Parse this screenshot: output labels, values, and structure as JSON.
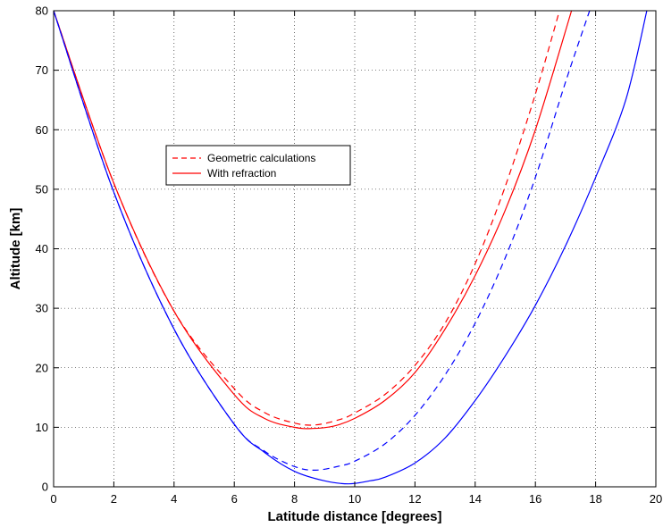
{
  "chart_data": {
    "type": "line",
    "xlabel": "Latitude distance [degrees]",
    "ylabel": "Altitude [km]",
    "xlim": [
      0,
      20
    ],
    "ylim": [
      0,
      80
    ],
    "xticks": [
      0,
      2,
      4,
      6,
      8,
      10,
      12,
      14,
      16,
      18,
      20
    ],
    "yticks": [
      0,
      10,
      20,
      30,
      40,
      50,
      60,
      70,
      80
    ],
    "grid": true,
    "legend": {
      "placement": "upper-left-center",
      "entries": [
        {
          "label": "Geometric calculations",
          "style": "dashed",
          "color": "#ff0000"
        },
        {
          "label": "With refraction",
          "style": "solid",
          "color": "#ff0000"
        }
      ]
    },
    "series": [
      {
        "color": "#ff0000",
        "style": "dashed",
        "x": [
          0,
          2,
          4,
          6,
          7,
          8,
          8.7,
          9.5,
          10,
          11,
          12,
          13,
          14,
          15,
          16,
          16.8
        ],
        "y": [
          80,
          51,
          29.5,
          16.5,
          12.5,
          10.7,
          10.4,
          11.3,
          12.4,
          15.5,
          20.4,
          27.5,
          37.5,
          50.5,
          66,
          80
        ]
      },
      {
        "color": "#ff0000",
        "style": "solid",
        "x": [
          0,
          2,
          4,
          6,
          7,
          8,
          8.6,
          9.3,
          10,
          11,
          12,
          13,
          14,
          15,
          16,
          17.2
        ],
        "y": [
          80,
          51,
          29.5,
          15.5,
          11.5,
          10,
          9.8,
          10.2,
          11.5,
          14.5,
          19.2,
          26.5,
          35.5,
          46.5,
          60,
          80
        ]
      },
      {
        "color": "#0000ff",
        "style": "dashed",
        "x": [
          0,
          2,
          4,
          6,
          7,
          8,
          8.7,
          9.5,
          10,
          11,
          12,
          13,
          14,
          15,
          16,
          17,
          17.8
        ],
        "y": [
          80,
          49.5,
          26.5,
          10.5,
          6,
          3.4,
          2.8,
          3.5,
          4.3,
          7.2,
          12,
          18.8,
          27.5,
          38.5,
          52,
          68,
          80
        ]
      },
      {
        "color": "#0000ff",
        "style": "solid",
        "x": [
          0,
          2,
          4,
          6,
          7,
          8,
          9,
          9.8,
          10.5,
          11,
          12,
          13,
          14,
          15,
          16,
          17,
          18,
          19,
          19.7
        ],
        "y": [
          80,
          49.5,
          26.5,
          10.5,
          5.8,
          2.6,
          1,
          0.5,
          1,
          1.6,
          4,
          8.2,
          14.5,
          22,
          30.5,
          40.5,
          52,
          65,
          80
        ]
      }
    ]
  }
}
